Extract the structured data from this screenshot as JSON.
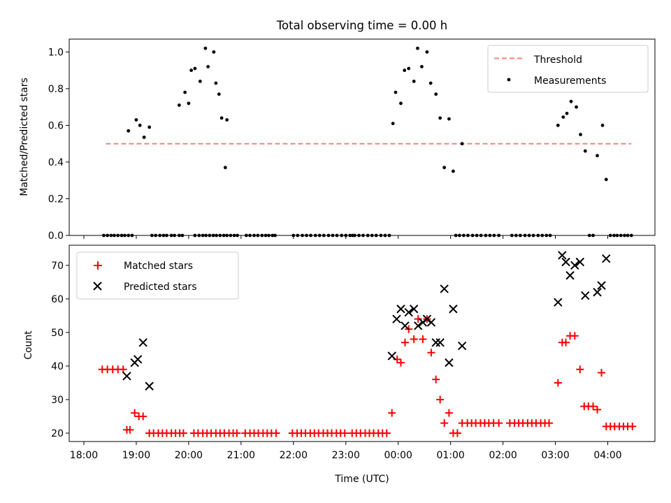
{
  "figure": {
    "title": "Total observing time = 0.00 h",
    "xlabel": "Time (UTC)"
  },
  "chart_data": [
    {
      "type": "scatter",
      "ylabel": "Matched/Predicted stars",
      "ylim": [
        0,
        1.07
      ],
      "yticks": [
        "0.0",
        "0.2",
        "0.4",
        "0.6",
        "0.8",
        "1.0"
      ],
      "ytick_values": [
        0,
        0.2,
        0.4,
        0.6,
        0.8,
        1.0
      ],
      "legend": {
        "position": "upper right"
      },
      "threshold": {
        "name": "Threshold",
        "value": 0.5,
        "x_start": 18.42,
        "x_end": 28.45,
        "color": "#ff7f7f"
      },
      "series": [
        {
          "name": "Measurements",
          "color": "#000000",
          "x": [
            18.85,
            19.0,
            19.07,
            19.15,
            19.25,
            19.82,
            19.93,
            20.0,
            20.05,
            20.12,
            20.22,
            20.32,
            20.37,
            20.48,
            20.52,
            20.58,
            20.63,
            20.7,
            20.73,
            23.9,
            23.95,
            24.05,
            24.12,
            24.2,
            24.3,
            24.37,
            24.45,
            24.55,
            24.62,
            24.72,
            24.8,
            24.88,
            24.97,
            25.05,
            25.22,
            27.05,
            27.15,
            27.22,
            27.3,
            27.4,
            27.48,
            27.57,
            27.8,
            27.9,
            27.97
          ],
          "y": [
            0.57,
            0.63,
            0.6,
            0.535,
            0.59,
            0.71,
            0.78,
            0.72,
            0.9,
            0.91,
            0.84,
            1.02,
            0.92,
            1.0,
            0.83,
            0.77,
            0.64,
            0.37,
            0.63,
            0.61,
            0.78,
            0.72,
            0.9,
            0.91,
            0.84,
            1.02,
            0.92,
            1.0,
            0.83,
            0.77,
            0.64,
            0.37,
            0.635,
            0.35,
            0.5,
            0.6,
            0.645,
            0.665,
            0.73,
            0.7,
            0.55,
            0.46,
            0.435,
            0.6,
            0.305
          ]
        },
        {
          "name": "",
          "color": "#000000",
          "x": [
            18.38,
            18.45,
            18.52,
            18.58,
            18.65,
            18.72,
            18.78,
            18.85,
            18.92,
            19.3,
            19.37,
            19.45,
            19.52,
            19.58,
            19.67,
            19.73,
            19.82,
            19.88,
            20.12,
            20.2,
            20.27,
            20.33,
            20.4,
            20.47,
            20.53,
            20.6,
            20.67,
            20.73,
            20.8,
            20.87,
            20.93,
            21.1,
            21.17,
            21.25,
            21.32,
            21.4,
            21.47,
            21.53,
            21.6,
            21.65,
            22.0,
            22.08,
            22.17,
            22.25,
            22.33,
            22.42,
            22.5,
            22.58,
            22.67,
            22.75,
            22.83,
            22.92,
            23.0,
            23.08,
            23.13,
            23.17,
            23.25,
            23.33,
            23.42,
            23.5,
            23.58,
            23.67,
            23.75,
            23.83,
            25.1,
            25.17,
            25.25,
            25.33,
            25.42,
            25.5,
            25.58,
            25.67,
            25.75,
            25.83,
            25.92,
            26.17,
            26.25,
            26.33,
            26.42,
            26.5,
            26.58,
            26.67,
            26.75,
            26.83,
            26.9,
            27.65,
            27.72,
            28.05,
            28.12,
            28.18,
            28.25,
            28.32,
            28.38,
            28.45
          ],
          "y": [
            0,
            0,
            0,
            0,
            0,
            0,
            0,
            0,
            0,
            0,
            0,
            0,
            0,
            0,
            0,
            0,
            0,
            0,
            0,
            0,
            0,
            0,
            0,
            0,
            0,
            0,
            0,
            0,
            0,
            0,
            0,
            0,
            0,
            0,
            0,
            0,
            0,
            0,
            0,
            0,
            0,
            0,
            0,
            0,
            0,
            0,
            0,
            0,
            0,
            0,
            0,
            0,
            0,
            0,
            0,
            0,
            0,
            0,
            0,
            0,
            0,
            0,
            0,
            0,
            0,
            0,
            0,
            0,
            0,
            0,
            0,
            0,
            0,
            0,
            0,
            0,
            0,
            0,
            0,
            0,
            0,
            0,
            0,
            0,
            0,
            0,
            0,
            0,
            0,
            0,
            0,
            0,
            0,
            0
          ]
        }
      ]
    },
    {
      "type": "scatter",
      "ylabel": "Count",
      "ylim": [
        17.5,
        76
      ],
      "yticks": [
        "20",
        "30",
        "40",
        "50",
        "60",
        "70"
      ],
      "ytick_values": [
        20,
        30,
        40,
        50,
        60,
        70
      ],
      "legend": {
        "position": "upper left"
      },
      "series": [
        {
          "name": "Matched stars",
          "marker": "plus",
          "color": "#ff0000",
          "x": [
            18.35,
            18.45,
            18.55,
            18.65,
            18.75,
            18.82,
            18.88,
            18.97,
            19.05,
            19.13,
            19.25,
            19.33,
            19.42,
            19.5,
            19.58,
            19.67,
            19.75,
            19.83,
            19.9,
            20.1,
            20.18,
            20.27,
            20.35,
            20.43,
            20.52,
            20.6,
            20.68,
            20.77,
            20.85,
            20.92,
            21.08,
            21.17,
            21.25,
            21.33,
            21.42,
            21.5,
            21.58,
            21.67,
            21.98,
            22.07,
            22.15,
            22.23,
            22.32,
            22.4,
            22.48,
            22.57,
            22.65,
            22.73,
            22.82,
            22.9,
            22.98,
            23.12,
            23.2,
            23.28,
            23.37,
            23.45,
            23.53,
            23.62,
            23.7,
            23.78,
            23.88,
            23.98,
            24.05,
            24.13,
            24.2,
            24.3,
            24.38,
            24.47,
            24.55,
            24.63,
            24.72,
            24.8,
            24.88,
            24.97,
            25.05,
            25.13,
            25.22,
            25.32,
            25.4,
            25.48,
            25.57,
            25.65,
            25.73,
            25.82,
            25.92,
            26.13,
            26.22,
            26.3,
            26.38,
            26.47,
            26.55,
            26.63,
            26.72,
            26.8,
            26.88,
            27.05,
            27.13,
            27.2,
            27.28,
            27.37,
            27.47,
            27.55,
            27.63,
            27.72,
            27.8,
            27.88,
            27.97,
            28.05,
            28.13,
            28.22,
            28.3,
            28.38,
            28.47
          ],
          "y": [
            39,
            39,
            39,
            39,
            39,
            21,
            21,
            26,
            25,
            25,
            20,
            20,
            20,
            20,
            20,
            20,
            20,
            20,
            20,
            20,
            20,
            20,
            20,
            20,
            20,
            20,
            20,
            20,
            20,
            20,
            20,
            20,
            20,
            20,
            20,
            20,
            20,
            20,
            20,
            20,
            20,
            20,
            20,
            20,
            20,
            20,
            20,
            20,
            20,
            20,
            20,
            20,
            20,
            20,
            20,
            20,
            20,
            20,
            20,
            20,
            26,
            42,
            41,
            47,
            51,
            48,
            54,
            48,
            54,
            44,
            36,
            30,
            23,
            26,
            20,
            20,
            23,
            23,
            23,
            23,
            23,
            23,
            23,
            23,
            23,
            23,
            23,
            23,
            23,
            23,
            23,
            23,
            23,
            23,
            23,
            35,
            47,
            47,
            49,
            49,
            39,
            28,
            28,
            28,
            27,
            38,
            22,
            22,
            22,
            22,
            22,
            22,
            22
          ]
        },
        {
          "name": "Predicted stars",
          "marker": "x",
          "color": "#000000",
          "x": [
            18.82,
            18.97,
            19.03,
            19.13,
            19.25,
            23.88,
            23.97,
            24.05,
            24.13,
            24.2,
            24.3,
            24.38,
            24.47,
            24.55,
            24.63,
            24.72,
            24.8,
            24.88,
            24.97,
            25.05,
            25.22,
            27.05,
            27.13,
            27.2,
            27.28,
            27.37,
            27.47,
            27.57,
            27.8,
            27.88,
            27.97
          ],
          "y": [
            37,
            41,
            42,
            47,
            34,
            43,
            54,
            57,
            52,
            56,
            57,
            52,
            53,
            54,
            53,
            47,
            47,
            63,
            41,
            57,
            46,
            59,
            73,
            71,
            67,
            70,
            71,
            61,
            62,
            64,
            72
          ]
        }
      ]
    }
  ],
  "x_axis": {
    "range": [
      17.72,
      28.9
    ],
    "ticks": [
      18,
      19,
      20,
      21,
      22,
      23,
      24,
      25,
      26,
      27,
      28
    ],
    "tick_labels": [
      "18:00",
      "19:00",
      "20:00",
      "21:00",
      "22:00",
      "23:00",
      "00:00",
      "01:00",
      "02:00",
      "03:00",
      "04:00"
    ]
  }
}
